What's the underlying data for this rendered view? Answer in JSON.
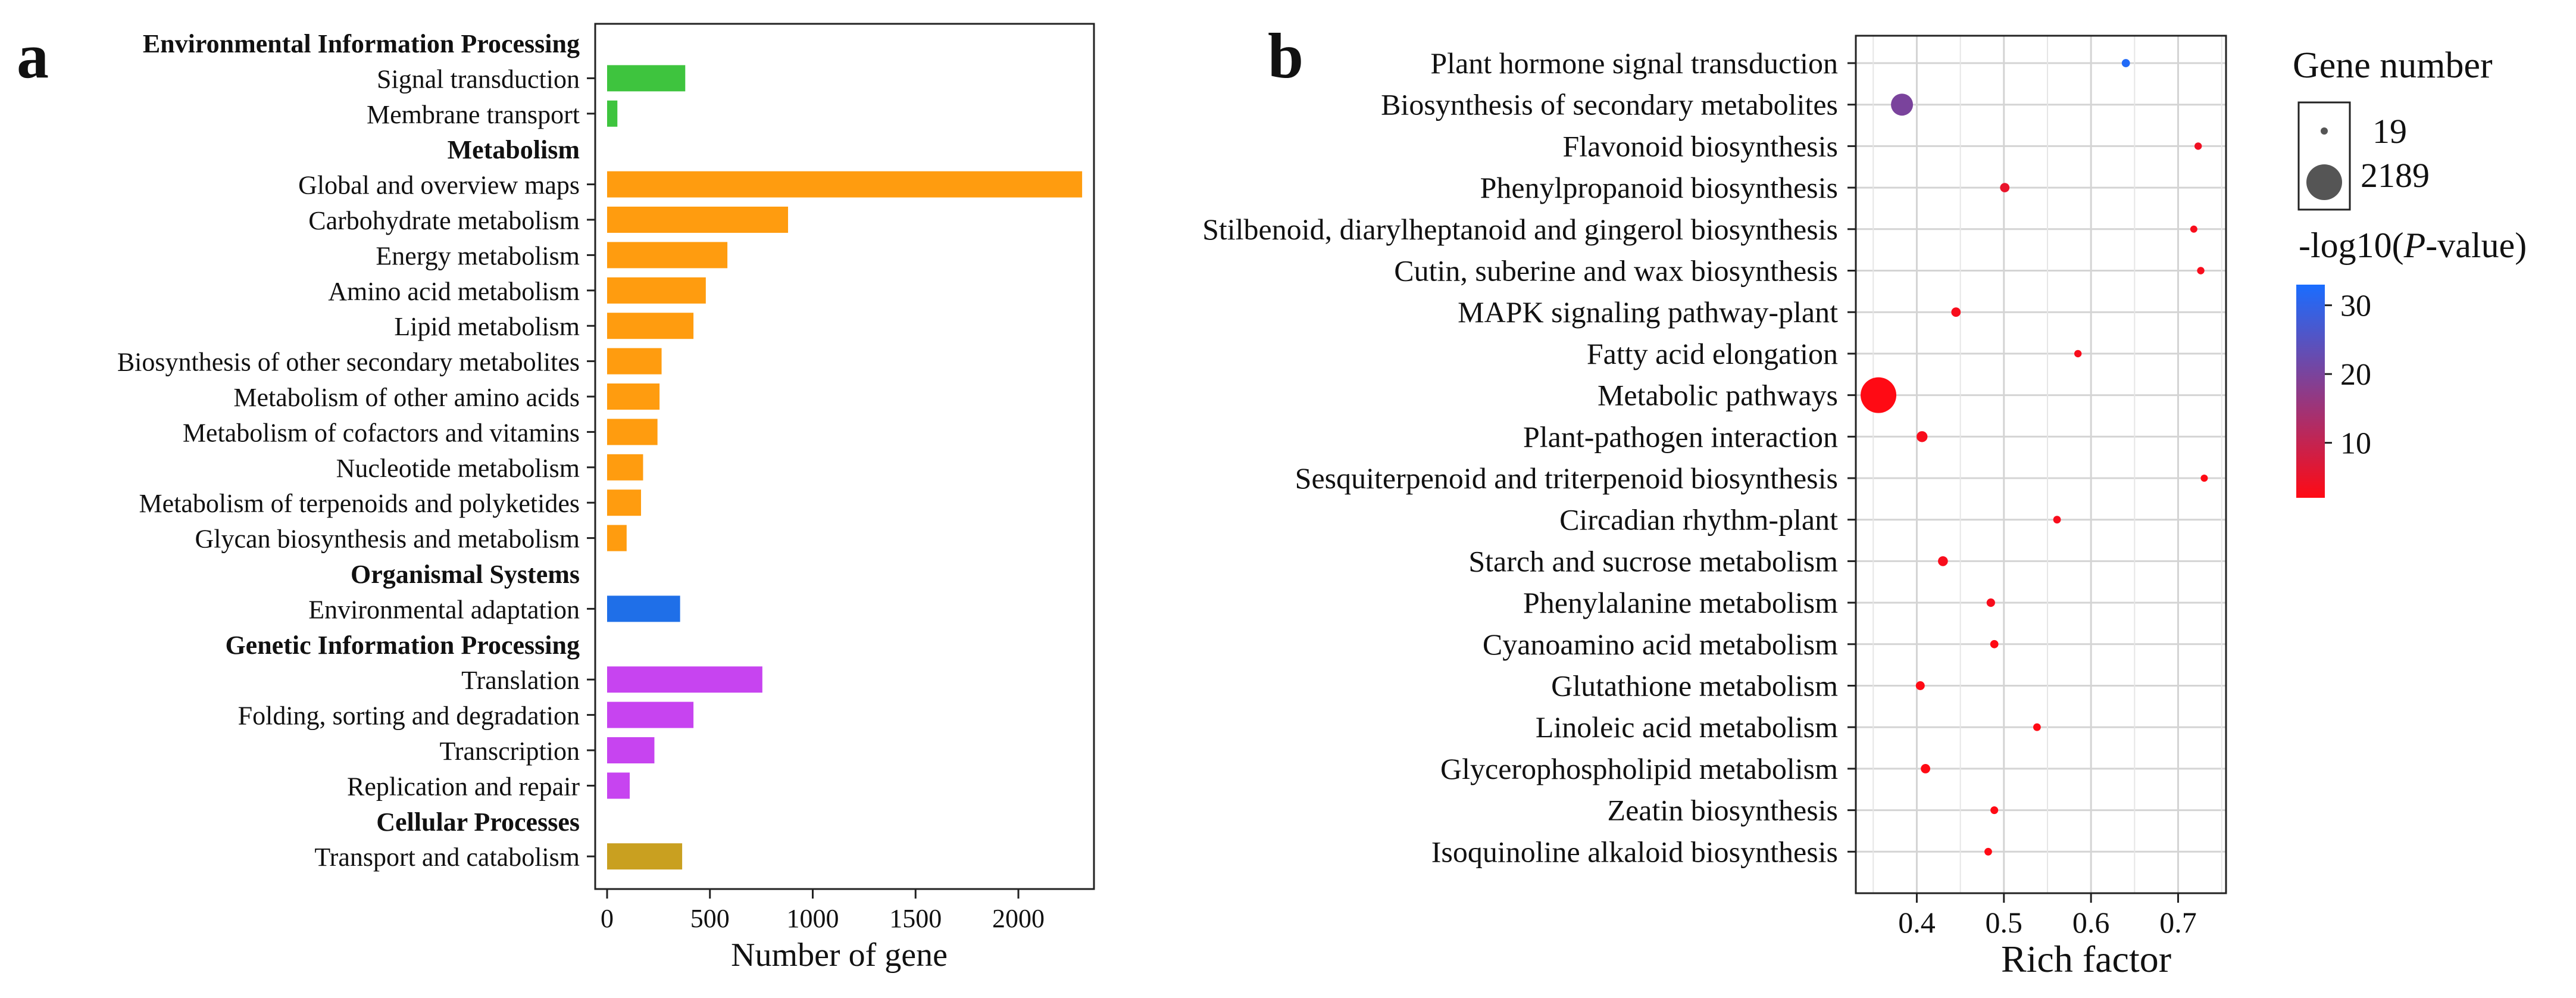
{
  "panel_a": {
    "letter": "a",
    "chart_data": {
      "type": "bar",
      "orientation": "horizontal",
      "xlabel": "Number of gene",
      "xlim": [
        -30,
        2390
      ],
      "xticks": [
        0,
        500,
        1000,
        1500,
        2000
      ],
      "rows": [
        {
          "label": "Environmental Information Processing",
          "header": true
        },
        {
          "label": "Signal transduction",
          "value": 380,
          "color": "#3ec43e"
        },
        {
          "label": "Membrane transport",
          "value": 50,
          "color": "#3ec43e"
        },
        {
          "label": "Metabolism",
          "header": true
        },
        {
          "label": "Global and overview maps",
          "value": 2310,
          "color": "#ff9c0f"
        },
        {
          "label": "Carbohydrate metabolism",
          "value": 880,
          "color": "#ff9c0f"
        },
        {
          "label": "Energy metabolism",
          "value": 585,
          "color": "#ff9c0f"
        },
        {
          "label": "Amino acid metabolism",
          "value": 480,
          "color": "#ff9c0f"
        },
        {
          "label": "Lipid metabolism",
          "value": 420,
          "color": "#ff9c0f"
        },
        {
          "label": "Biosynthesis of other secondary metabolites",
          "value": 265,
          "color": "#ff9c0f"
        },
        {
          "label": "Metabolism of other amino acids",
          "value": 255,
          "color": "#ff9c0f"
        },
        {
          "label": "Metabolism of cofactors and vitamins",
          "value": 245,
          "color": "#ff9c0f"
        },
        {
          "label": "Nucleotide metabolism",
          "value": 175,
          "color": "#ff9c0f"
        },
        {
          "label": "Metabolism of terpenoids and polyketides",
          "value": 165,
          "color": "#ff9c0f"
        },
        {
          "label": "Glycan biosynthesis and metabolism",
          "value": 95,
          "color": "#ff9c0f"
        },
        {
          "label": "Organismal Systems",
          "header": true
        },
        {
          "label": "Environmental adaptation",
          "value": 355,
          "color": "#1f6fe8"
        },
        {
          "label": "Genetic Information Processing",
          "header": true
        },
        {
          "label": "Translation",
          "value": 755,
          "color": "#c744f0"
        },
        {
          "label": "Folding, sorting and degradation",
          "value": 420,
          "color": "#c744f0"
        },
        {
          "label": "Transcription",
          "value": 230,
          "color": "#c744f0"
        },
        {
          "label": "Replication and repair",
          "value": 110,
          "color": "#c744f0"
        },
        {
          "label": "Cellular Processes",
          "header": true
        },
        {
          "label": "Transport and catabolism",
          "value": 365,
          "color": "#c9a020"
        }
      ]
    }
  },
  "panel_b": {
    "letter": "b",
    "chart_data": {
      "type": "scatter",
      "xlabel": "Rich factor",
      "xlim": [
        0.33,
        0.755
      ],
      "xticks": [
        0.4,
        0.5,
        0.6,
        0.7
      ],
      "grid": true,
      "points": [
        {
          "label": "Plant hormone signal transduction",
          "x": 0.64,
          "genes": 36,
          "p": 32
        },
        {
          "label": "Biosynthesis of secondary metabolites",
          "x": 0.383,
          "genes": 700,
          "p": 20
        },
        {
          "label": "Flavonoid biosynthesis",
          "x": 0.723,
          "genes": 22,
          "p": 4
        },
        {
          "label": "Phenylpropanoid biosynthesis",
          "x": 0.501,
          "genes": 60,
          "p": 5
        },
        {
          "label": "Stilbenoid, diarylheptanoid and gingerol biosynthesis",
          "x": 0.718,
          "genes": 19,
          "p": 3
        },
        {
          "label": "Cutin, suberine and wax biosynthesis",
          "x": 0.726,
          "genes": 22,
          "p": 3
        },
        {
          "label": "MAPK signaling pathway-plant",
          "x": 0.445,
          "genes": 60,
          "p": 3
        },
        {
          "label": "Fatty acid elongation",
          "x": 0.585,
          "genes": 22,
          "p": 3
        },
        {
          "label": "Metabolic pathways",
          "x": 0.356,
          "genes": 2189,
          "p": 2
        },
        {
          "label": "Plant-pathogen interaction",
          "x": 0.406,
          "genes": 100,
          "p": 3
        },
        {
          "label": "Sesquiterpenoid and triterpenoid biosynthesis",
          "x": 0.73,
          "genes": 19,
          "p": 2
        },
        {
          "label": "Circadian rhythm-plant",
          "x": 0.561,
          "genes": 26,
          "p": 3
        },
        {
          "label": "Starch and sucrose metabolism",
          "x": 0.43,
          "genes": 70,
          "p": 3
        },
        {
          "label": "Phenylalanine metabolism",
          "x": 0.485,
          "genes": 40,
          "p": 3
        },
        {
          "label": "Cyanoamino acid metabolism",
          "x": 0.489,
          "genes": 36,
          "p": 2
        },
        {
          "label": "Glutathione metabolism",
          "x": 0.404,
          "genes": 50,
          "p": 2
        },
        {
          "label": "Linoleic acid metabolism",
          "x": 0.538,
          "genes": 25,
          "p": 2
        },
        {
          "label": "Glycerophospholipid metabolism",
          "x": 0.41,
          "genes": 60,
          "p": 2
        },
        {
          "label": "Zeatin biosynthesis",
          "x": 0.489,
          "genes": 28,
          "p": 2
        },
        {
          "label": "Isoquinoline alkaloid biosynthesis",
          "x": 0.482,
          "genes": 25,
          "p": 2
        }
      ],
      "size_legend": {
        "title": "Gene number",
        "min": 19,
        "max": 2189,
        "min_label": "19",
        "max_label": "2189"
      },
      "color_legend": {
        "title_prefix": "-log10(",
        "title_italic": "P",
        "title_suffix": "-value)",
        "range": [
          2,
          33
        ],
        "ticks": [
          "10",
          "20",
          "30"
        ],
        "tick_values": [
          10,
          20,
          30
        ],
        "low_color": "#ff0a14",
        "high_color": "#1a6dff"
      }
    }
  }
}
